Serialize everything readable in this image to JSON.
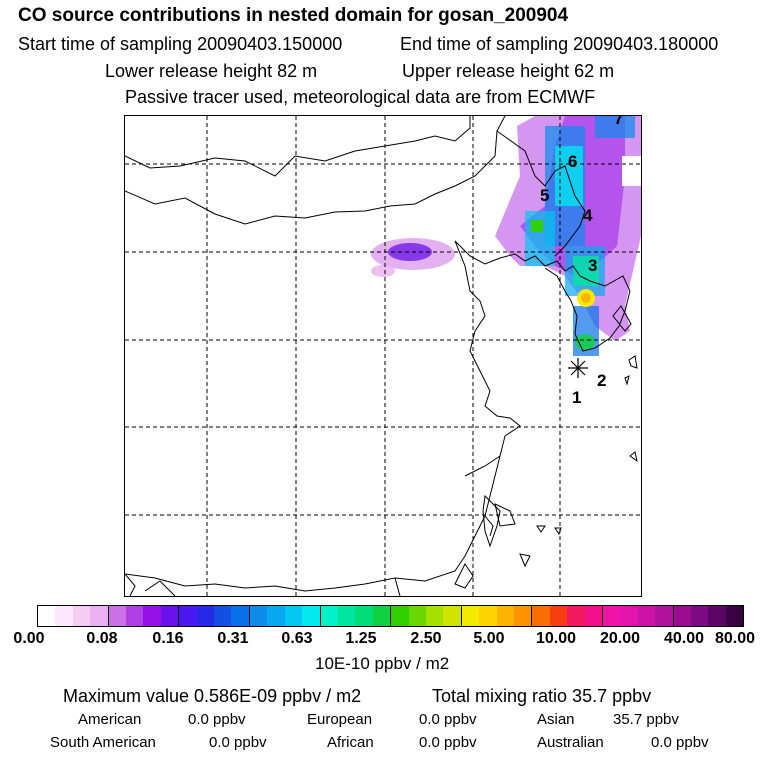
{
  "header": {
    "title": "CO  source contributions in nested domain for gosan_200904",
    "start_time": "Start time of sampling 20090403.150000",
    "end_time": "End time of sampling 20090403.180000",
    "lower_release": "Lower release height   82 m",
    "upper_release": "Upper release height   62 m",
    "tracer_note": "Passive tracer used, meteorological data are from ECMWF"
  },
  "map": {
    "markers": [
      "1",
      "2",
      "3",
      "4",
      "5",
      "6",
      "7"
    ]
  },
  "colorbar": {
    "labels": [
      "0.00",
      "0.08",
      "0.16",
      "0.31",
      "0.63",
      "1.25",
      "2.50",
      "5.00",
      "10.00",
      "20.00",
      "40.00",
      "80.00"
    ],
    "units": "10E-10 ppbv / m2",
    "colors": [
      "#ffffff",
      "#fbe6fb",
      "#f4ccf4",
      "#eab0ef",
      "#cc70e8",
      "#b040e6",
      "#9412e8",
      "#6a10e8",
      "#4a18f0",
      "#2828e8",
      "#1450e0",
      "#0870e8",
      "#0c8cec",
      "#08a8f0",
      "#02c8f0",
      "#00eaf0",
      "#00f2c8",
      "#00e6a0",
      "#00dc78",
      "#10d240",
      "#2ed000",
      "#68d800",
      "#a4e000",
      "#d0e400",
      "#f6ea00",
      "#fcd400",
      "#fcb400",
      "#fc9200",
      "#fa6e00",
      "#f63e10",
      "#f41860",
      "#f4108c",
      "#f014a6",
      "#e414ae",
      "#cc12a8",
      "#b4109e",
      "#9a0c92",
      "#7c0a82",
      "#5a0662",
      "#3a0442"
    ]
  },
  "stats": {
    "maximum": "Maximum value  0.586E-09 ppbv / m2",
    "total": "Total mixing ratio       35.7 ppbv",
    "regions": [
      {
        "name": "American",
        "value": "0.0 ppbv"
      },
      {
        "name": "European",
        "value": "0.0 ppbv"
      },
      {
        "name": "Asian",
        "value": "35.7 ppbv"
      },
      {
        "name": "South American",
        "value": "0.0 ppbv"
      },
      {
        "name": "African",
        "value": "0.0 ppbv"
      },
      {
        "name": "Australian",
        "value": "0.0 ppbv"
      }
    ]
  }
}
